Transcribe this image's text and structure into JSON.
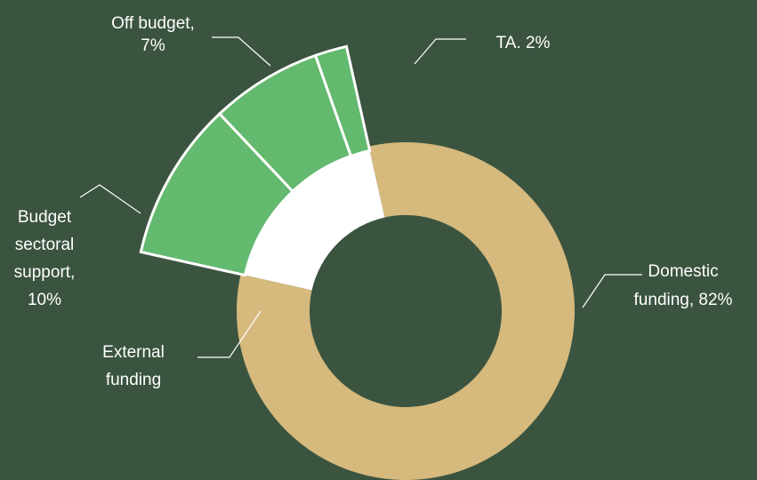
{
  "chart_data": {
    "type": "donut",
    "categories": [
      [
        "Domestic",
        "funding, 82%"
      ],
      [
        "External",
        "funding"
      ]
    ],
    "values": [
      82,
      18
    ],
    "colors": [
      "#d5b97d",
      "#ffffff"
    ],
    "breakdown": {
      "categories": [
        [
          "Budget",
          "sectoral",
          "support,",
          "10%"
        ],
        [
          "Off budget,",
          "7%"
        ],
        [
          "TA. 2%"
        ]
      ],
      "values": [
        10,
        7,
        2
      ],
      "color": "#63b96e"
    }
  }
}
